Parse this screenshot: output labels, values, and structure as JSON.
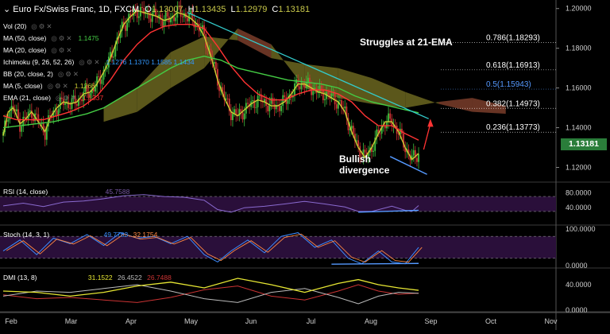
{
  "header": {
    "symbol": "Euro Fx/Swiss Franc, 1D, FXCM",
    "o_label": "O",
    "o": "1.13007",
    "h_label": "H",
    "h": "1.13435",
    "l_label": "L",
    "l": "1.12979",
    "c_label": "C",
    "c": "1.13181"
  },
  "indicators": [
    {
      "label": "Vol (20)",
      "value": "",
      "color": "#ffffff"
    },
    {
      "label": "MA (50, close)",
      "value": "1.1475",
      "color": "#44cc44"
    },
    {
      "label": "MA (20, close)",
      "value": "",
      "color": "#ffffff"
    },
    {
      "label": "Ichimoku (9, 26, 52, 26)",
      "value": "1.1276  1.1370  1.1585  1.1434",
      "color": "#3399ff"
    },
    {
      "label": "BB (20, close, 2)",
      "value": "",
      "color": "#ffffff"
    },
    {
      "label": "MA (5, close)",
      "value": "1.1266",
      "color": "#cccc33"
    },
    {
      "label": "EMA (21, close)",
      "value": "1.1337",
      "color": "#ff3333"
    }
  ],
  "annotations": {
    "struggles": "Struggles at 21-EMA",
    "bullish_line1": "Bullish",
    "bullish_line2": "divergence"
  },
  "fib_levels": [
    {
      "label": "0.786(1.18293)",
      "value": 1.18293,
      "color": "#ffffff"
    },
    {
      "label": "0.618(1.16913)",
      "value": 1.16913,
      "color": "#ffffff"
    },
    {
      "label": "0.5(1.15943)",
      "value": 1.15943,
      "color": "#5599ff"
    },
    {
      "label": "0.382(1.14973)",
      "value": 1.14973,
      "color": "#ffffff"
    },
    {
      "label": "0.236(1.13773)",
      "value": 1.13773,
      "color": "#ffffff"
    }
  ],
  "price_badge": "1.13181",
  "chart_data": {
    "type": "line",
    "x_ticks": [
      "Feb",
      "Mar",
      "Apr",
      "May",
      "Jun",
      "Jul",
      "Aug",
      "Sep",
      "Oct",
      "Nov"
    ],
    "price_axis": {
      "ticks": [
        "1.20000",
        "1.18000",
        "1.16000",
        "1.14000",
        "1.12000"
      ],
      "range": [
        1.113,
        1.2035
      ]
    },
    "series": [
      {
        "name": "MA (5, close)",
        "color": "#cccc33",
        "values": [
          [
            0,
            1.136
          ],
          [
            3,
            1.148
          ],
          [
            6,
            1.15
          ],
          [
            10,
            1.142
          ],
          [
            13,
            1.144
          ],
          [
            17,
            1.148
          ],
          [
            21,
            1.143
          ],
          [
            25,
            1.138
          ],
          [
            28,
            1.145
          ],
          [
            32,
            1.15
          ],
          [
            36,
            1.153
          ],
          [
            40,
            1.152
          ],
          [
            44,
            1.153
          ],
          [
            48,
            1.157
          ],
          [
            52,
            1.158
          ],
          [
            56,
            1.162
          ],
          [
            60,
            1.168
          ],
          [
            64,
            1.175
          ],
          [
            68,
            1.184
          ],
          [
            72,
            1.192
          ],
          [
            76,
            1.196
          ],
          [
            80,
            1.199
          ],
          [
            84,
            1.198
          ],
          [
            88,
            1.197
          ],
          [
            92,
            1.196
          ],
          [
            96,
            1.194
          ],
          [
            100,
            1.195
          ],
          [
            104,
            1.198
          ],
          [
            108,
            1.197
          ],
          [
            112,
            1.195
          ],
          [
            116,
            1.192
          ],
          [
            120,
            1.186
          ],
          [
            124,
            1.176
          ],
          [
            128,
            1.164
          ],
          [
            132,
            1.155
          ],
          [
            136,
            1.148
          ],
          [
            140,
            1.146
          ],
          [
            144,
            1.149
          ],
          [
            148,
            1.152
          ],
          [
            152,
            1.154
          ],
          [
            156,
            1.153
          ],
          [
            160,
            1.151
          ],
          [
            164,
            1.151
          ],
          [
            168,
            1.153
          ],
          [
            172,
            1.157
          ],
          [
            176,
            1.162
          ],
          [
            180,
            1.162
          ],
          [
            184,
            1.16
          ],
          [
            188,
            1.158
          ],
          [
            192,
            1.157
          ],
          [
            196,
            1.155
          ],
          [
            200,
            1.153
          ],
          [
            204,
            1.148
          ],
          [
            208,
            1.138
          ],
          [
            212,
            1.13
          ],
          [
            216,
            1.125
          ],
          [
            220,
            1.13
          ],
          [
            224,
            1.137
          ],
          [
            228,
            1.143
          ],
          [
            232,
            1.143
          ],
          [
            236,
            1.138
          ],
          [
            240,
            1.13
          ],
          [
            244,
            1.124
          ],
          [
            248,
            1.127
          ]
        ]
      },
      {
        "name": "EMA (21, close)",
        "color": "#ff3333",
        "values": [
          [
            0,
            1.146
          ],
          [
            8,
            1.144
          ],
          [
            16,
            1.144
          ],
          [
            24,
            1.144
          ],
          [
            32,
            1.146
          ],
          [
            40,
            1.148
          ],
          [
            48,
            1.151
          ],
          [
            56,
            1.156
          ],
          [
            64,
            1.164
          ],
          [
            72,
            1.174
          ],
          [
            80,
            1.182
          ],
          [
            88,
            1.188
          ],
          [
            96,
            1.191
          ],
          [
            104,
            1.192
          ],
          [
            112,
            1.192
          ],
          [
            120,
            1.19
          ],
          [
            128,
            1.181
          ],
          [
            136,
            1.171
          ],
          [
            144,
            1.163
          ],
          [
            152,
            1.157
          ],
          [
            160,
            1.154
          ],
          [
            168,
            1.154
          ],
          [
            176,
            1.157
          ],
          [
            184,
            1.159
          ],
          [
            192,
            1.159
          ],
          [
            200,
            1.157
          ],
          [
            208,
            1.153
          ],
          [
            216,
            1.146
          ],
          [
            224,
            1.141
          ],
          [
            232,
            1.141
          ],
          [
            240,
            1.137
          ],
          [
            248,
            1.1337
          ]
        ]
      },
      {
        "name": "MA (50, close)",
        "color": "#44cc44",
        "values": [
          [
            0,
            1.14
          ],
          [
            10,
            1.141
          ],
          [
            20,
            1.142
          ],
          [
            30,
            1.143
          ],
          [
            40,
            1.145
          ],
          [
            50,
            1.147
          ],
          [
            60,
            1.15
          ],
          [
            70,
            1.155
          ],
          [
            80,
            1.16
          ],
          [
            90,
            1.165
          ],
          [
            100,
            1.17
          ],
          [
            110,
            1.174
          ],
          [
            120,
            1.176
          ],
          [
            130,
            1.174
          ],
          [
            140,
            1.17
          ],
          [
            150,
            1.168
          ],
          [
            160,
            1.166
          ],
          [
            170,
            1.164
          ],
          [
            180,
            1.163
          ],
          [
            190,
            1.162
          ],
          [
            200,
            1.16
          ],
          [
            210,
            1.156
          ],
          [
            220,
            1.153
          ],
          [
            230,
            1.151
          ],
          [
            240,
            1.149
          ],
          [
            248,
            1.1475
          ]
        ]
      },
      {
        "name": "Trend line",
        "color": "#33cccc",
        "values": [
          [
            110,
            1.198
          ],
          [
            254,
            1.1445
          ]
        ]
      }
    ],
    "volume_panel": {
      "label": "Vol (20)"
    },
    "rsi_panel": {
      "label": "RSI (14, close)",
      "value": "45.7588",
      "axis_ticks": [
        "80.0000",
        "40.0000"
      ],
      "range": [
        0,
        100
      ],
      "levels": [
        70,
        30
      ],
      "values": [
        [
          0,
          45
        ],
        [
          12,
          52
        ],
        [
          24,
          43
        ],
        [
          36,
          55
        ],
        [
          48,
          58
        ],
        [
          60,
          64
        ],
        [
          72,
          72
        ],
        [
          84,
          75
        ],
        [
          96,
          70
        ],
        [
          108,
          68
        ],
        [
          120,
          60
        ],
        [
          128,
          35
        ],
        [
          136,
          28
        ],
        [
          144,
          40
        ],
        [
          156,
          44
        ],
        [
          168,
          50
        ],
        [
          180,
          57
        ],
        [
          192,
          50
        ],
        [
          204,
          42
        ],
        [
          212,
          30
        ],
        [
          220,
          30
        ],
        [
          232,
          44
        ],
        [
          240,
          33
        ],
        [
          244,
          30
        ],
        [
          248,
          45.76
        ]
      ]
    },
    "stoch_panel": {
      "label": "Stoch (14, 3, 1)",
      "value_k": "49.7783",
      "value_d": "32.1754",
      "axis_ticks": [
        "100.0000",
        "0.0000"
      ],
      "range": [
        0,
        100
      ],
      "values": [
        [
          0,
          40
        ],
        [
          10,
          70
        ],
        [
          20,
          30
        ],
        [
          30,
          75
        ],
        [
          40,
          60
        ],
        [
          50,
          85
        ],
        [
          60,
          55
        ],
        [
          70,
          90
        ],
        [
          80,
          75
        ],
        [
          90,
          80
        ],
        [
          100,
          60
        ],
        [
          110,
          80
        ],
        [
          120,
          30
        ],
        [
          128,
          10
        ],
        [
          136,
          40
        ],
        [
          146,
          70
        ],
        [
          156,
          35
        ],
        [
          166,
          80
        ],
        [
          176,
          90
        ],
        [
          186,
          50
        ],
        [
          196,
          70
        ],
        [
          206,
          20
        ],
        [
          214,
          5
        ],
        [
          224,
          40
        ],
        [
          232,
          10
        ],
        [
          240,
          5
        ],
        [
          248,
          49.78
        ]
      ]
    },
    "dmi_panel": {
      "label": "DMI (13, 8)",
      "value_adx": "31.1522",
      "value_pdi": "26.4522",
      "value_mdi": "26.7488",
      "axis_ticks": [
        "40.0000",
        "0.0000"
      ],
      "range": [
        0,
        60
      ],
      "adx": [
        [
          0,
          30
        ],
        [
          20,
          28
        ],
        [
          40,
          22
        ],
        [
          60,
          28
        ],
        [
          80,
          38
        ],
        [
          100,
          44
        ],
        [
          120,
          35
        ],
        [
          140,
          50
        ],
        [
          160,
          40
        ],
        [
          180,
          28
        ],
        [
          200,
          42
        ],
        [
          212,
          48
        ],
        [
          224,
          40
        ],
        [
          236,
          35
        ],
        [
          248,
          31.15
        ]
      ],
      "pdi": [
        [
          0,
          22
        ],
        [
          20,
          30
        ],
        [
          40,
          28
        ],
        [
          60,
          34
        ],
        [
          80,
          40
        ],
        [
          100,
          30
        ],
        [
          120,
          18
        ],
        [
          140,
          12
        ],
        [
          160,
          28
        ],
        [
          180,
          34
        ],
        [
          200,
          20
        ],
        [
          212,
          10
        ],
        [
          224,
          22
        ],
        [
          236,
          28
        ],
        [
          248,
          26.45
        ]
      ],
      "mdi": [
        [
          0,
          24
        ],
        [
          20,
          18
        ],
        [
          40,
          20
        ],
        [
          60,
          16
        ],
        [
          80,
          12
        ],
        [
          100,
          20
        ],
        [
          120,
          32
        ],
        [
          140,
          38
        ],
        [
          160,
          22
        ],
        [
          180,
          16
        ],
        [
          200,
          30
        ],
        [
          212,
          40
        ],
        [
          224,
          30
        ],
        [
          236,
          25
        ],
        [
          248,
          26.75
        ]
      ]
    }
  }
}
